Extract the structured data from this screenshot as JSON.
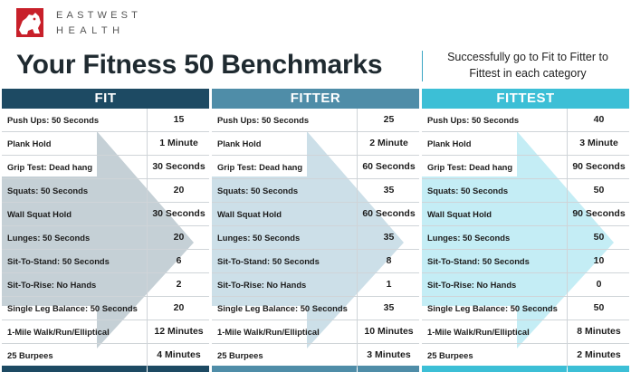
{
  "brand": {
    "line1": "EASTWEST",
    "line2": "HEALTH"
  },
  "title": "Your Fitness 50 Benchmarks",
  "subtitle": "Successfully go to Fit to Fitter to Fittest in each category",
  "colors": {
    "fit": "#1d4a63",
    "fit_light": "#7e96a4",
    "fitter": "#4f8da8",
    "fitter_light": "#8fb8cb",
    "fittest": "#3cbfd6",
    "fittest_light": "#7cd8e8",
    "logo_red": "#c8202a"
  },
  "columns": [
    {
      "key": "fit",
      "label": "FIT",
      "rows": [
        {
          "exercise": "Push Ups: 50 Seconds",
          "value": "15"
        },
        {
          "exercise": "Plank Hold",
          "value": "1 Minute"
        },
        {
          "exercise": "Grip Test: Dead hang",
          "value": "30 Seconds"
        },
        {
          "exercise": "Squats: 50 Seconds",
          "value": "20"
        },
        {
          "exercise": "Wall Squat Hold",
          "value": "30 Seconds"
        },
        {
          "exercise": "Lunges: 50 Seconds",
          "value": "20"
        },
        {
          "exercise": "Sit-To-Stand: 50 Seconds",
          "value": "6"
        },
        {
          "exercise": "Sit-To-Rise: No Hands",
          "value": "2"
        },
        {
          "exercise": "Single Leg Balance: 50 Seconds",
          "value": "20"
        },
        {
          "exercise": "1-Mile Walk/Run/Elliptical",
          "value": "12 Minutes"
        },
        {
          "exercise": "25 Burpees",
          "value": "4 Minutes"
        }
      ]
    },
    {
      "key": "fitter",
      "label": "FITTER",
      "rows": [
        {
          "exercise": "Push Ups: 50 Seconds",
          "value": "25"
        },
        {
          "exercise": "Plank Hold",
          "value": "2 Minute"
        },
        {
          "exercise": "Grip Test: Dead hang",
          "value": "60 Seconds"
        },
        {
          "exercise": "Squats: 50 Seconds",
          "value": "35"
        },
        {
          "exercise": "Wall Squat Hold",
          "value": "60 Seconds"
        },
        {
          "exercise": "Lunges: 50 Seconds",
          "value": "35"
        },
        {
          "exercise": "Sit-To-Stand: 50 Seconds",
          "value": "8"
        },
        {
          "exercise": "Sit-To-Rise: No Hands",
          "value": "1"
        },
        {
          "exercise": "Single Leg Balance: 50 Seconds",
          "value": "35"
        },
        {
          "exercise": "1-Mile Walk/Run/Elliptical",
          "value": "10 Minutes"
        },
        {
          "exercise": "25 Burpees",
          "value": "3 Minutes"
        }
      ]
    },
    {
      "key": "fittest",
      "label": "FITTEST",
      "rows": [
        {
          "exercise": "Push Ups: 50 Seconds",
          "value": "40"
        },
        {
          "exercise": "Plank Hold",
          "value": "3 Minute"
        },
        {
          "exercise": "Grip Test: Dead hang",
          "value": "90 Seconds"
        },
        {
          "exercise": "Squats: 50 Seconds",
          "value": "50"
        },
        {
          "exercise": "Wall Squat Hold",
          "value": "90 Seconds"
        },
        {
          "exercise": "Lunges: 50 Seconds",
          "value": "50"
        },
        {
          "exercise": "Sit-To-Stand: 50 Seconds",
          "value": "10"
        },
        {
          "exercise": "Sit-To-Rise: No Hands",
          "value": "0"
        },
        {
          "exercise": "Single Leg Balance: 50 Seconds",
          "value": "50"
        },
        {
          "exercise": "1-Mile Walk/Run/Elliptical",
          "value": "8 Minutes"
        },
        {
          "exercise": "25 Burpees",
          "value": "2 Minutes"
        }
      ]
    }
  ]
}
